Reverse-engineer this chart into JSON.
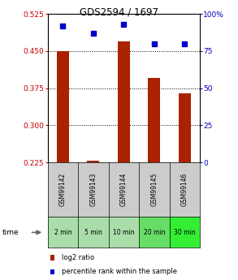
{
  "title": "GDS2594 / 1697",
  "samples": [
    "GSM99142",
    "GSM99143",
    "GSM99144",
    "GSM99145",
    "GSM99146"
  ],
  "time_labels": [
    "2 min",
    "5 min",
    "10 min",
    "20 min",
    "30 min"
  ],
  "log2_ratio": [
    0.45,
    0.228,
    0.47,
    0.395,
    0.365
  ],
  "percentile_rank": [
    92,
    87,
    93,
    80,
    80
  ],
  "bar_bottom": 0.225,
  "ylim_left": [
    0.225,
    0.525
  ],
  "ylim_right": [
    0,
    100
  ],
  "yticks_left": [
    0.225,
    0.3,
    0.375,
    0.45,
    0.525
  ],
  "yticks_right": [
    0,
    25,
    50,
    75,
    100
  ],
  "bar_color": "#AA2200",
  "dot_color": "#0000CC",
  "label_color_left": "#CC0000",
  "label_color_right": "#0000BB",
  "sample_bg": "#CCCCCC",
  "time_bg_colors": [
    "#AADDAA",
    "#AADDAA",
    "#AADDAA",
    "#66DD66",
    "#33EE33"
  ],
  "legend_bar_label": "log2 ratio",
  "legend_dot_label": "percentile rank within the sample",
  "bar_width": 0.4
}
